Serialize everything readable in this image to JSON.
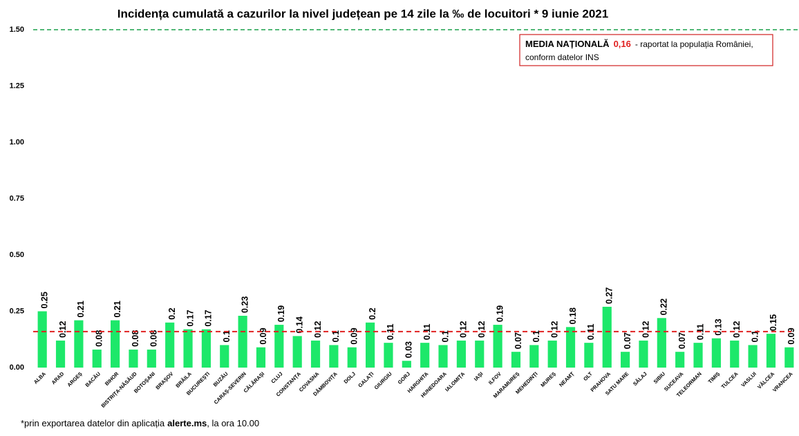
{
  "chart_data": {
    "type": "bar",
    "title": "Incidența cumulată a cazurilor la nivel județean pe 14 zile la ‰ de locuitori *  9 iunie 2021",
    "categories": [
      "ALBA",
      "ARAD",
      "ARGEȘ",
      "BACĂU",
      "BIHOR",
      "BISTRIȚA-NĂSĂUD",
      "BOTOȘANI",
      "BRAȘOV",
      "BRĂILA",
      "BUCUREȘTI",
      "BUZĂU",
      "CARAȘ-SEVERIN",
      "CĂLĂRAȘI",
      "CLUJ",
      "CONSTANȚA",
      "COVASNA",
      "DÂMBOVIȚA",
      "DOLJ",
      "GALAȚI",
      "GIURGIU",
      "GORJ",
      "HARGHITA",
      "HUNEDOARA",
      "IALOMIȚA",
      "IAȘI",
      "ILFOV",
      "MARAMUREȘ",
      "MEHEDINȚI",
      "MUREȘ",
      "NEAMȚ",
      "OLT",
      "PRAHOVA",
      "SATU MARE",
      "SĂLAJ",
      "SIBIU",
      "SUCEAVA",
      "TELEORMAN",
      "TIMIȘ",
      "TULCEA",
      "VASLUI",
      "VÂLCEA",
      "VRANCEA"
    ],
    "values": [
      0.25,
      0.12,
      0.21,
      0.08,
      0.21,
      0.08,
      0.08,
      0.2,
      0.17,
      0.17,
      0.1,
      0.23,
      0.09,
      0.19,
      0.14,
      0.12,
      0.1,
      0.09,
      0.2,
      0.11,
      0.03,
      0.11,
      0.1,
      0.12,
      0.12,
      0.19,
      0.07,
      0.1,
      0.12,
      0.18,
      0.11,
      0.27,
      0.07,
      0.12,
      0.22,
      0.07,
      0.11,
      0.13,
      0.12,
      0.1,
      0.15,
      0.09
    ],
    "color": "#1de86a",
    "ylim": [
      0,
      1.5
    ],
    "yticks": [
      {
        "value": 0,
        "label": "0.00"
      },
      {
        "value": 0.25,
        "label": "0.25"
      },
      {
        "value": 0.5,
        "label": "0.50"
      },
      {
        "value": 0.75,
        "label": "0.75"
      },
      {
        "value": 1,
        "label": "1.00"
      },
      {
        "value": 1.25,
        "label": "1.25"
      },
      {
        "value": 1.5,
        "label": "1.50"
      }
    ],
    "grid": false,
    "top_line_color": "#1aa04a",
    "mean": {
      "value": 0.16,
      "label": "0,16",
      "color": "#e02020"
    },
    "annotation": {
      "heading": "MEDIA NAȚIONALĂ",
      "text": "- raportat la populația României,",
      "text2": "conform datelor INS"
    },
    "footnote": {
      "text": "*prin exportarea datelor din aplicația",
      "source": "alerte.ms",
      "text2": ", la ora 10.00"
    }
  }
}
